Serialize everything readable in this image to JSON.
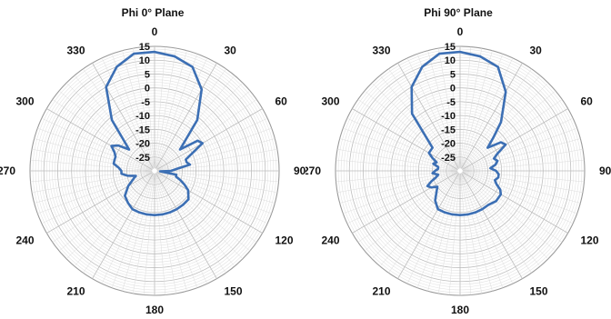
{
  "chart_data": [
    {
      "type": "polar-line",
      "title": "Phi 0° Plane",
      "radial_axis": {
        "min": -30,
        "max": 15,
        "major_step": 5,
        "tick_labels": [
          "15",
          "10",
          "5",
          "0",
          "-5",
          "-10",
          "-15",
          "-20",
          "-25"
        ]
      },
      "angular_axis": {
        "tick_labels": [
          "0",
          "30",
          "60",
          "90",
          "120",
          "150",
          "180",
          "210",
          "240",
          "270",
          "300",
          "330"
        ],
        "direction": "clockwise",
        "zero_at": "top"
      },
      "grid": true,
      "series": [
        {
          "color": "#3c6fb4",
          "theta_deg": [
            0,
            10,
            20,
            30,
            40,
            50,
            55,
            60,
            65,
            70,
            75,
            80,
            85,
            90,
            95,
            100,
            105,
            110,
            115,
            120,
            130,
            140,
            150,
            160,
            170,
            180,
            190,
            200,
            210,
            220,
            230,
            240,
            250,
            255,
            260,
            265,
            270,
            275,
            280,
            285,
            290,
            295,
            300,
            305,
            310,
            320,
            330,
            340,
            350
          ],
          "r_db": [
            13,
            12,
            10,
            4,
            -6,
            -18,
            -11,
            -10,
            -15,
            -18,
            -18,
            -17,
            -22,
            -24,
            -28,
            -22,
            -22,
            -20,
            -18,
            -16,
            -14,
            -14,
            -14,
            -14,
            -14,
            -14,
            -14,
            -14,
            -14,
            -15,
            -16,
            -19,
            -22,
            -23,
            -20,
            -18,
            -18,
            -17,
            -15,
            -15,
            -15,
            -14,
            -12,
            -14,
            -18,
            -6,
            5,
            10,
            13
          ]
        }
      ]
    },
    {
      "type": "polar-line",
      "title": "Phi 90° Plane",
      "radial_axis": {
        "min": -30,
        "max": 15,
        "major_step": 5,
        "tick_labels": [
          "15",
          "10",
          "5",
          "0",
          "-5",
          "-10",
          "-15",
          "-20",
          "-25"
        ]
      },
      "angular_axis": {
        "tick_labels": [
          "0",
          "30",
          "60",
          "90",
          "120",
          "150",
          "180",
          "210",
          "240",
          "270",
          "300",
          "330"
        ],
        "direction": "clockwise",
        "zero_at": "top"
      },
      "grid": true,
      "series": [
        {
          "color": "#3c6fb4",
          "theta_deg": [
            0,
            10,
            20,
            30,
            40,
            45,
            50,
            55,
            60,
            65,
            70,
            75,
            80,
            85,
            90,
            95,
            100,
            105,
            110,
            115,
            120,
            130,
            140,
            150,
            160,
            170,
            180,
            190,
            200,
            210,
            220,
            230,
            235,
            240,
            245,
            250,
            255,
            260,
            265,
            270,
            275,
            280,
            285,
            290,
            295,
            300,
            310,
            320,
            330,
            340,
            350
          ],
          "r_db": [
            13,
            12,
            10,
            3,
            -7,
            -13,
            -17,
            -12,
            -11,
            -15,
            -17,
            -16,
            -17,
            -19,
            -17,
            -16,
            -16,
            -17,
            -16,
            -14,
            -13,
            -13,
            -14,
            -14,
            -14,
            -14,
            -14,
            -14,
            -14,
            -14,
            -16,
            -19,
            -20,
            -18,
            -17,
            -19,
            -21,
            -22,
            -20,
            -21,
            -22,
            -22,
            -20,
            -21,
            -19,
            -17,
            -17,
            -3,
            5,
            10,
            13
          ]
        }
      ]
    }
  ]
}
